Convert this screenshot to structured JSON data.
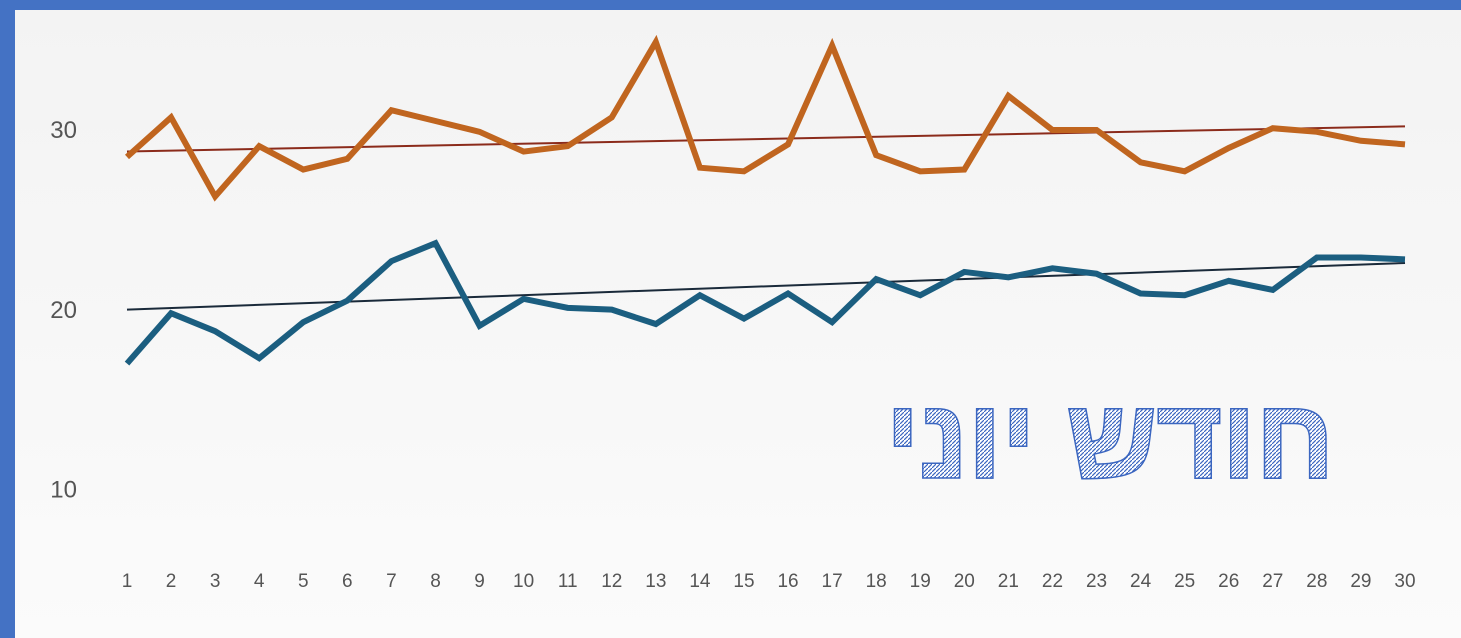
{
  "chart_data": {
    "type": "line",
    "title": "חודש יוני",
    "x": [
      1,
      2,
      3,
      4,
      5,
      6,
      7,
      8,
      9,
      10,
      11,
      12,
      13,
      14,
      15,
      16,
      17,
      18,
      19,
      20,
      21,
      22,
      23,
      24,
      25,
      26,
      27,
      28,
      29,
      30
    ],
    "xlim": [
      1,
      30
    ],
    "ylim": [
      7,
      36
    ],
    "yticks": [
      10,
      20,
      30
    ],
    "grid": false,
    "series": [
      {
        "color": "#c0651f",
        "trend_color": "#8b2b1b",
        "trend": [
          28.9,
          30.3
        ],
        "values": [
          28.6,
          30.8,
          26.4,
          29.2,
          27.9,
          28.5,
          31.2,
          30.6,
          30.0,
          28.9,
          29.2,
          30.8,
          35.0,
          28.0,
          27.8,
          29.3,
          34.8,
          28.7,
          27.8,
          27.9,
          32.0,
          30.1,
          30.1,
          28.3,
          27.8,
          29.1,
          30.2,
          30.0,
          29.5,
          29.3
        ]
      },
      {
        "color": "#1b5e80",
        "trend_color": "#1a2a3a",
        "trend": [
          20.1,
          22.7
        ],
        "values": [
          17.1,
          19.9,
          18.9,
          17.4,
          19.4,
          20.6,
          22.8,
          23.8,
          19.2,
          20.7,
          20.2,
          20.1,
          19.3,
          20.9,
          19.6,
          21.0,
          19.4,
          21.8,
          20.9,
          22.2,
          21.9,
          22.4,
          22.1,
          21.0,
          20.9,
          21.7,
          21.2,
          23.0,
          23.0,
          22.9
        ]
      }
    ]
  }
}
